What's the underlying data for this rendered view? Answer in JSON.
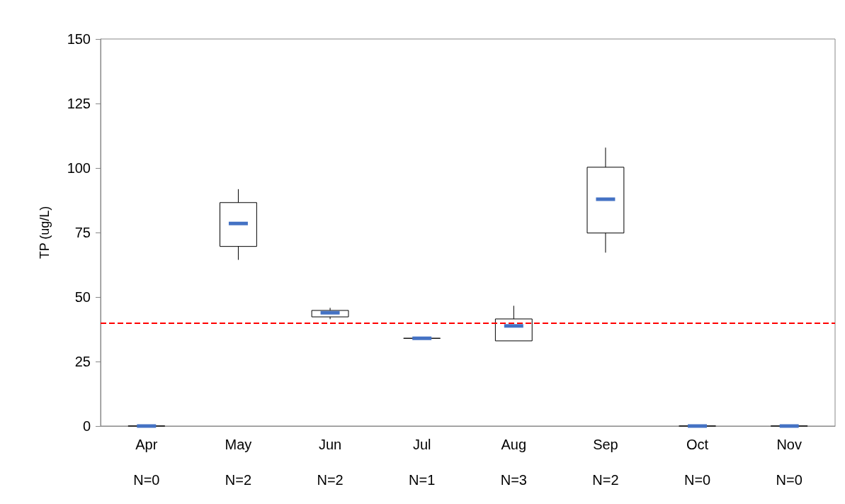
{
  "chart_data": {
    "type": "box",
    "ylabel": "TP (ug/L)",
    "categories": [
      "Apr",
      "May",
      "Jun",
      "Jul",
      "Aug",
      "Sep",
      "Oct",
      "Nov"
    ],
    "boxes": [
      {
        "low": 0,
        "q1": 0,
        "median": 0,
        "q3": 0,
        "high": 0
      },
      {
        "low": 64.4,
        "q1": 69.6,
        "median": 78.5,
        "q3": 86.6,
        "high": 91.8
      },
      {
        "low": 41.4,
        "q1": 42.3,
        "median": 43.9,
        "q3": 44.8,
        "high": 45.8
      },
      {
        "low": 34,
        "q1": 34,
        "median": 34,
        "q3": 34,
        "high": 34
      },
      {
        "low": 33,
        "q1": 33,
        "median": 38.8,
        "q3": 41.5,
        "high": 46.6
      },
      {
        "low": 67.2,
        "q1": 74.8,
        "median": 87.9,
        "q3": 100.3,
        "high": 107.9
      },
      {
        "low": 0,
        "q1": 0,
        "median": 0,
        "q3": 0,
        "high": 0
      },
      {
        "low": 0,
        "q1": 0,
        "median": 0,
        "q3": 0,
        "high": 0
      }
    ],
    "color": "#4472c4",
    "ylim": [
      0,
      150
    ],
    "yticks": [
      0,
      25,
      50,
      75,
      100,
      125,
      150
    ],
    "grid": false,
    "ref_lines": [
      {
        "axis": "y",
        "value": 40,
        "color": "#ff0000",
        "line_style": "dashed"
      }
    ],
    "annotations": [
      "N=0",
      "N=2",
      "N=2",
      "N=1",
      "N=3",
      "N=2",
      "N=0",
      "N=0"
    ]
  }
}
